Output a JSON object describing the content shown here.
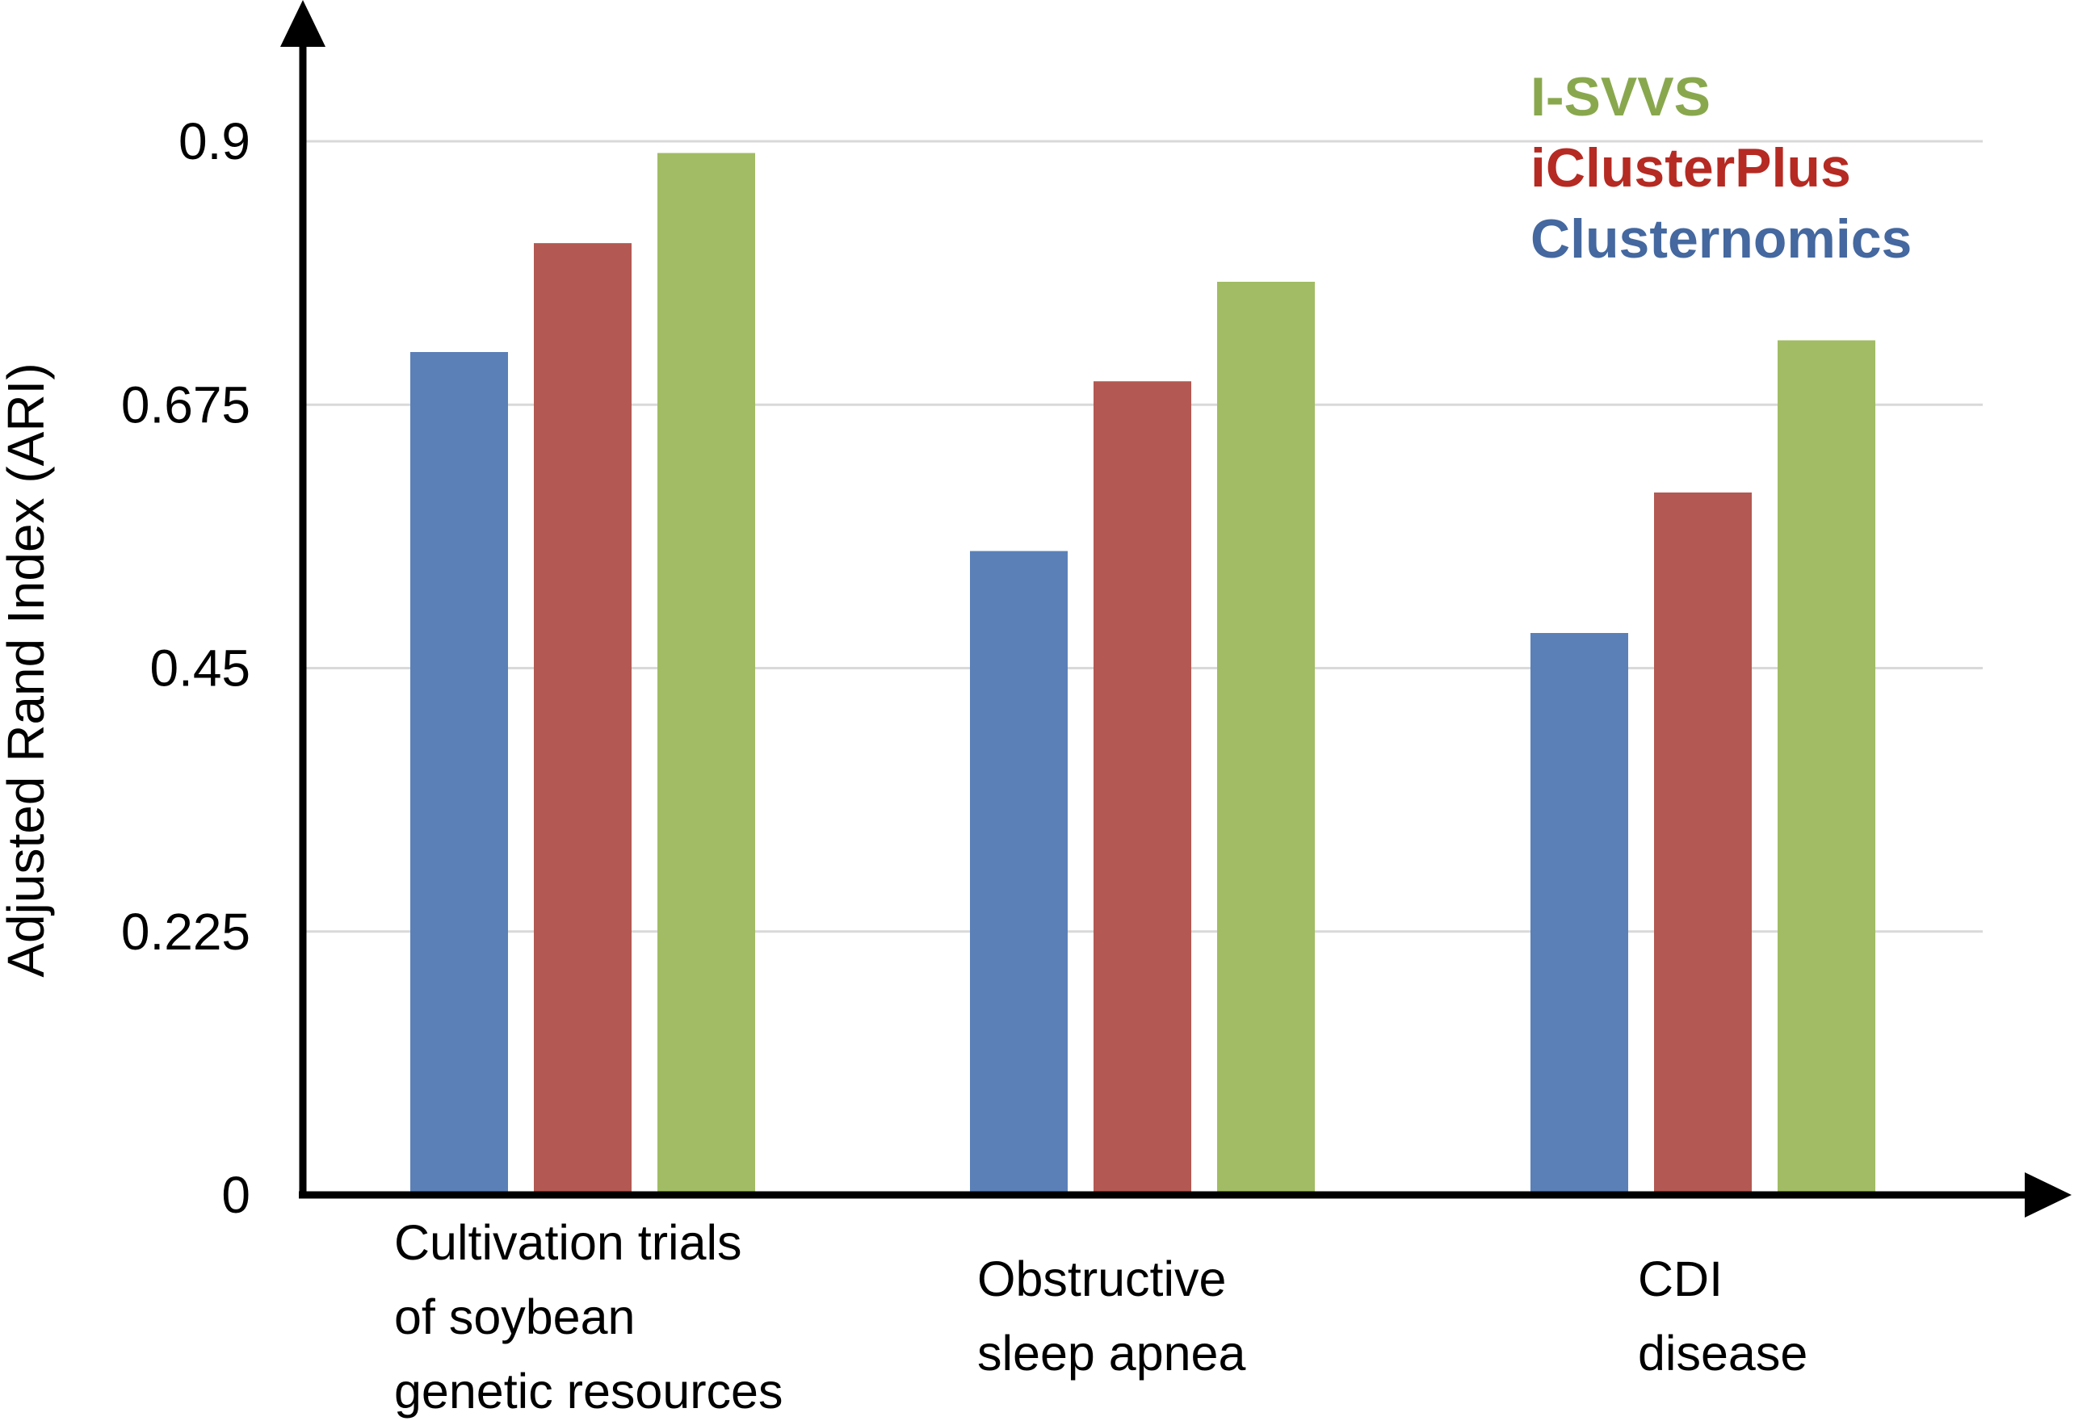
{
  "chart_data": {
    "type": "bar",
    "title": "",
    "xlabel": "",
    "ylabel": "Adjusted Rand Index (ARI)",
    "ylim": [
      0,
      0.9
    ],
    "yticks": [
      {
        "value": 0,
        "label": "0"
      },
      {
        "value": 0.225,
        "label": "0.225"
      },
      {
        "value": 0.45,
        "label": "0.45"
      },
      {
        "value": 0.675,
        "label": "0.675"
      },
      {
        "value": 0.9,
        "label": "0.9"
      }
    ],
    "grid": "horizontal",
    "categories": [
      "Cultivation trials of soybean genetic resources",
      "Obstructive sleep apnea",
      "CDI disease"
    ],
    "category_lines": [
      [
        "Cultivation trials",
        "of soybean",
        "genetic resources"
      ],
      [
        "Obstructive",
        "sleep apnea"
      ],
      [
        "CDI",
        "disease"
      ]
    ],
    "series": [
      {
        "name": "Clusternomics",
        "color": "#5b80b8",
        "values": [
          0.72,
          0.55,
          0.48
        ]
      },
      {
        "name": "iClusterPlus",
        "color": "#b35852",
        "values": [
          0.813,
          0.695,
          0.6
        ]
      },
      {
        "name": "I-SVVS",
        "color": "#a1bc64",
        "values": [
          0.89,
          0.78,
          0.73
        ]
      }
    ],
    "legend": {
      "placement": "top-right",
      "order": [
        "I-SVVS",
        "iClusterPlus",
        "Clusternomics"
      ],
      "text_colors": {
        "I-SVVS": "#89a84e",
        "iClusterPlus": "#b52a22",
        "Clusternomics": "#44689f"
      }
    }
  }
}
